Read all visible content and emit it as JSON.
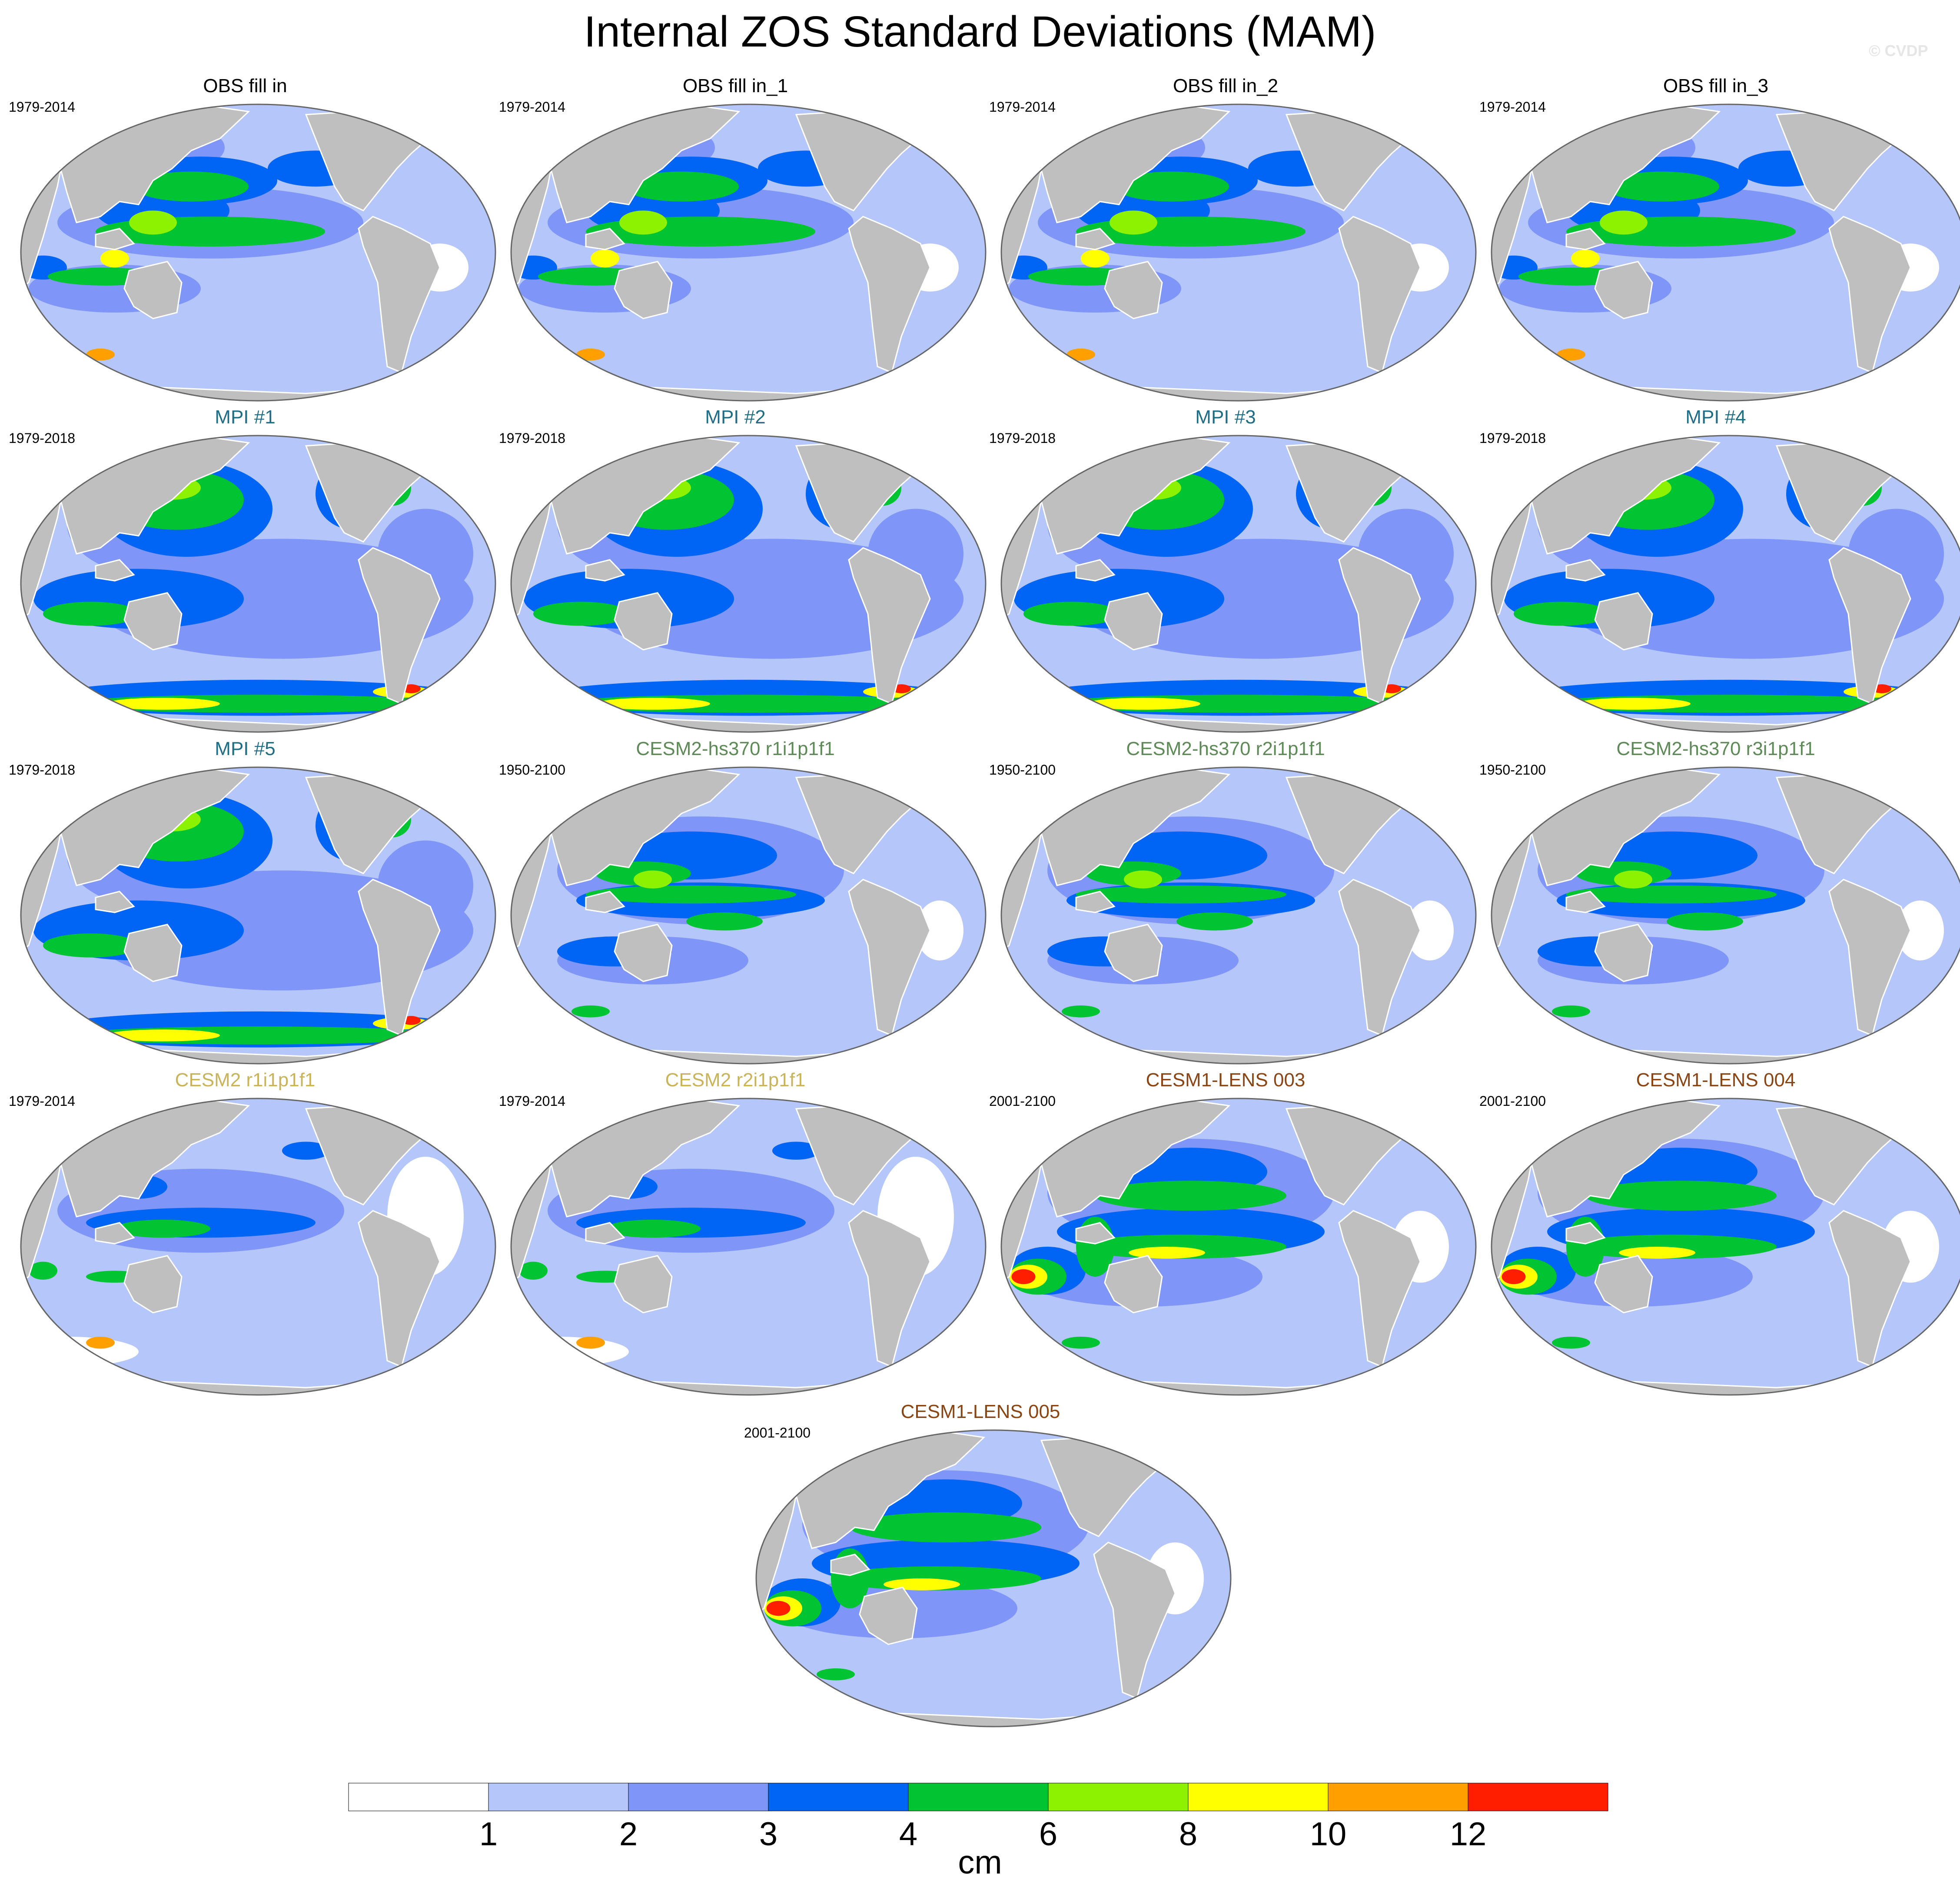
{
  "title": "Internal ZOS Standard Deviations (MAM)",
  "credit": "© CVDP",
  "colors": {
    "ocean_base": "#b4c6fa",
    "land": "#bfbfbf",
    "outline": "#666666",
    "levels": [
      "#ffffff",
      "#b4c6fa",
      "#7f96f8",
      "#0064f5",
      "#00c431",
      "#8cf200",
      "#ffff00",
      "#ffa000",
      "#ff1e00"
    ]
  },
  "panels": [
    {
      "title": "OBS fill in",
      "years": "1979-2014",
      "title_color": "#000000",
      "pattern": "obs"
    },
    {
      "title": "OBS fill in_1",
      "years": "1979-2014",
      "title_color": "#000000",
      "pattern": "obs"
    },
    {
      "title": "OBS fill in_2",
      "years": "1979-2014",
      "title_color": "#000000",
      "pattern": "obs"
    },
    {
      "title": "OBS fill in_3",
      "years": "1979-2014",
      "title_color": "#000000",
      "pattern": "obs"
    },
    {
      "title": "MPI #1",
      "years": "1979-2018",
      "title_color": "#1f6e86",
      "pattern": "mpi"
    },
    {
      "title": "MPI #2",
      "years": "1979-2018",
      "title_color": "#1f6e86",
      "pattern": "mpi"
    },
    {
      "title": "MPI #3",
      "years": "1979-2018",
      "title_color": "#1f6e86",
      "pattern": "mpi"
    },
    {
      "title": "MPI #4",
      "years": "1979-2018",
      "title_color": "#1f6e86",
      "pattern": "mpi"
    },
    {
      "title": "MPI #5",
      "years": "1979-2018",
      "title_color": "#1f6e86",
      "pattern": "mpi"
    },
    {
      "title": "CESM2-hs370 r1i1p1f1",
      "years": "1950-2100",
      "title_color": "#5e8a57",
      "pattern": "hs370"
    },
    {
      "title": "CESM2-hs370 r2i1p1f1",
      "years": "1950-2100",
      "title_color": "#5e8a57",
      "pattern": "hs370"
    },
    {
      "title": "CESM2-hs370 r3i1p1f1",
      "years": "1950-2100",
      "title_color": "#5e8a57",
      "pattern": "hs370"
    },
    {
      "title": "CESM2 r1i1p1f1",
      "years": "1979-2014",
      "title_color": "#c9b45a",
      "pattern": "cesm2"
    },
    {
      "title": "CESM2 r2i1p1f1",
      "years": "1979-2014",
      "title_color": "#c9b45a",
      "pattern": "cesm2"
    },
    {
      "title": "CESM1-LENS 003",
      "years": "2001-2100",
      "title_color": "#8b4513",
      "pattern": "lens"
    },
    {
      "title": "CESM1-LENS 004",
      "years": "2001-2100",
      "title_color": "#8b4513",
      "pattern": "lens"
    },
    {
      "title": "CESM1-LENS 005",
      "years": "2001-2100",
      "title_color": "#8b4513",
      "pattern": "lens"
    }
  ],
  "colorbar": {
    "labels": [
      "1",
      "2",
      "3",
      "4",
      "6",
      "8",
      "10",
      "12"
    ],
    "units": "cm"
  }
}
